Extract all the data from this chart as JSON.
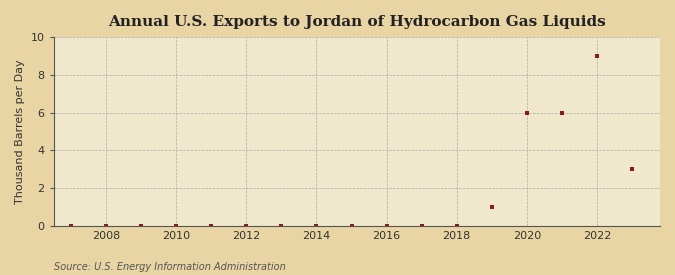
{
  "title": "Annual U.S. Exports to Jordan of Hydrocarbon Gas Liquids",
  "ylabel": "Thousand Barrels per Day",
  "source": "Source: U.S. Energy Information Administration",
  "outer_bg_color": "#e8d5a3",
  "plot_bg_color": "#f0e8cc",
  "years": [
    2007,
    2008,
    2009,
    2010,
    2011,
    2012,
    2013,
    2014,
    2015,
    2016,
    2017,
    2018,
    2019,
    2020,
    2021,
    2022,
    2023
  ],
  "values": [
    0,
    0,
    0,
    0,
    0,
    0,
    0,
    0,
    0,
    0,
    0,
    0,
    1,
    6,
    6,
    9,
    3
  ],
  "marker_color": "#8b1a1a",
  "marker_size": 3.5,
  "xlim": [
    2006.5,
    2023.8
  ],
  "ylim": [
    0,
    10
  ],
  "yticks": [
    0,
    2,
    4,
    6,
    8,
    10
  ],
  "xticks": [
    2008,
    2010,
    2012,
    2014,
    2016,
    2018,
    2020,
    2022
  ],
  "title_fontsize": 11,
  "label_fontsize": 8,
  "tick_fontsize": 8,
  "source_fontsize": 7
}
